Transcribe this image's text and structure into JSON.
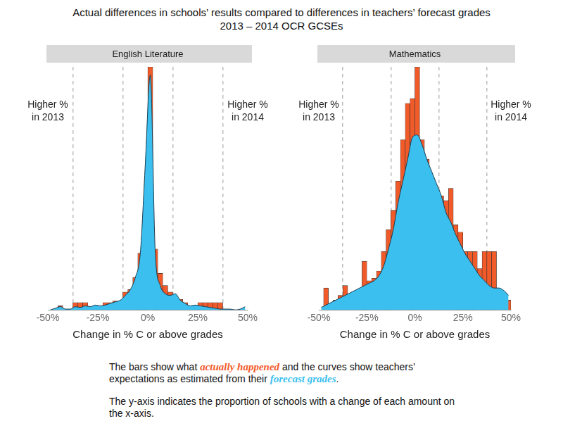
{
  "title": "Actual differences in schools’ results compared to differences in teachers’ forecast grades",
  "subtitle": "2013 – 2014 OCR GCSEs",
  "chart_data": [
    {
      "type": "histogram",
      "title": "English Literature",
      "x_label": "Change in % C or above grades",
      "bins": [
        -50,
        -47.5,
        -45,
        -42.5,
        -40,
        -37.5,
        -35,
        -32.5,
        -30,
        -27.5,
        -25,
        -22.5,
        -20,
        -17.5,
        -15,
        -12.5,
        -10,
        -7.5,
        -5,
        -2.5,
        0,
        2.5,
        5,
        7.5,
        10,
        12.5,
        15,
        17.5,
        20,
        22.5,
        25,
        27.5,
        30,
        32.5,
        35,
        37.5,
        40,
        42.5,
        45,
        47.5,
        50
      ],
      "series": [
        {
          "name": "actually happened",
          "type": "bar",
          "color": "#f15a29",
          "values": [
            0,
            0,
            0.005,
            0,
            0,
            0.009,
            0.009,
            0.009,
            0.004,
            0.004,
            0.004,
            0.009,
            0.009,
            0.011,
            0.009,
            0.022,
            0.025,
            0.04,
            0.07,
            0.085,
            0.3,
            0.075,
            0.045,
            0.03,
            0.022,
            0.013,
            0.013,
            0.009,
            0.004,
            0.004,
            0.009,
            0.009,
            0.009,
            0.009,
            0.009,
            0,
            0,
            0,
            0,
            0
          ]
        },
        {
          "name": "forecast grades",
          "type": "area",
          "color": "#3bbfef",
          "values": [
            0,
            0.002,
            0.004,
            0.001,
            0.001,
            0.004,
            0.003,
            0.005,
            0.004,
            0.006,
            0.005,
            0.006,
            0.008,
            0.01,
            0.012,
            0.018,
            0.025,
            0.04,
            0.07,
            0.18,
            0.29,
            0.07,
            0.03,
            0.02,
            0.018,
            0.02,
            0.012,
            0.008,
            0.005,
            0.006,
            0.005,
            0.004,
            0.003,
            0.002,
            0.001,
            0.001,
            0.001,
            0,
            0.001,
            0.004
          ]
        }
      ],
      "xlim": [
        -50,
        50
      ],
      "xticks": [
        {
          "value": -50,
          "label": "-50%"
        },
        {
          "value": -25,
          "label": "-25%"
        },
        {
          "value": 0,
          "label": "0%"
        },
        {
          "value": 25,
          "label": "25%"
        },
        {
          "value": 50,
          "label": "50%"
        }
      ],
      "ylim": [
        0,
        0.3
      ],
      "grid": true,
      "tick_labels": "x",
      "annotations": [
        {
          "x": -50,
          "lines": [
            "Higher %",
            "in 2013"
          ]
        },
        {
          "x": 50,
          "lines": [
            "Higher %",
            "in 2014"
          ]
        }
      ]
    },
    {
      "type": "histogram",
      "title": "Mathematics",
      "x_label": "Change in % C or above grades",
      "bins": [
        -50,
        -47.5,
        -45,
        -42.5,
        -40,
        -37.5,
        -35,
        -32.5,
        -30,
        -27.5,
        -25,
        -22.5,
        -20,
        -17.5,
        -15,
        -12.5,
        -10,
        -7.5,
        -5,
        -2.5,
        0,
        2.5,
        5,
        7.5,
        10,
        12.5,
        15,
        17.5,
        20,
        22.5,
        25,
        27.5,
        30,
        32.5,
        35,
        37.5,
        40,
        42.5,
        45,
        47.5,
        50
      ],
      "series": [
        {
          "name": "actually happened",
          "type": "bar",
          "color": "#f15a29",
          "values": [
            0,
            0.009,
            0.002,
            0.004,
            0.006,
            0.01,
            0.005,
            0.006,
            0.006,
            0.02,
            0.012,
            0.013,
            0.016,
            0.024,
            0.033,
            0.041,
            0.053,
            0.07,
            0.085,
            0.087,
            0.1,
            0.07,
            0.062,
            0.053,
            0.048,
            0.047,
            0.045,
            0.05,
            0.035,
            0.032,
            0.024,
            0.024,
            0.024,
            0.017,
            0.024,
            0.024,
            0.024,
            0.005,
            0.005,
            0.004
          ]
        },
        {
          "name": "forecast grades",
          "type": "area",
          "color": "#3bbfef",
          "values": [
            0.001,
            0.002,
            0.003,
            0.004,
            0.005,
            0.006,
            0.007,
            0.008,
            0.009,
            0.01,
            0.011,
            0.012,
            0.014,
            0.018,
            0.025,
            0.033,
            0.044,
            0.053,
            0.062,
            0.071,
            0.072,
            0.068,
            0.062,
            0.057,
            0.052,
            0.047,
            0.04,
            0.036,
            0.031,
            0.027,
            0.023,
            0.02,
            0.017,
            0.014,
            0.012,
            0.01,
            0.009,
            0.009,
            0.008,
            0.006
          ]
        }
      ],
      "xlim": [
        -50,
        50
      ],
      "xticks": [
        {
          "value": -50,
          "label": "-50%"
        },
        {
          "value": -25,
          "label": "-25%"
        },
        {
          "value": 0,
          "label": "0%"
        },
        {
          "value": 25,
          "label": "25%"
        },
        {
          "value": 50,
          "label": "50%"
        }
      ],
      "ylim": [
        0,
        0.1
      ],
      "grid": true,
      "tick_labels": "x",
      "annotations": [
        {
          "x": -50,
          "lines": [
            "Higher %",
            "in 2013"
          ]
        },
        {
          "x": 50,
          "lines": [
            "Higher %",
            "in 2014"
          ]
        }
      ]
    }
  ],
  "caption": [
    [
      {
        "text": "The bars show what "
      },
      {
        "text": "actually happened",
        "color": "#f15a29"
      },
      {
        "text": " and the curves show teachers’ expectations as estimated from their "
      },
      {
        "text": "forecast grades",
        "color": "#3bbfef"
      },
      {
        "text": "."
      }
    ],
    [
      {
        "text": "The y-axis indicates the proportion of schools with a change of each amount on the x-axis."
      }
    ]
  ]
}
